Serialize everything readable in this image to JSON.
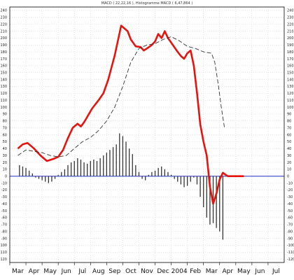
{
  "chart_data": {
    "type": "line",
    "title": "MACD ( 22,22,16 ), Histogramme MACD ( 6,47,864 )",
    "xlabel": "",
    "ylabel": "",
    "ylim": [
      -125,
      245
    ],
    "y_ticks": [
      -120,
      -110,
      -100,
      -90,
      -80,
      -70,
      -60,
      -50,
      -40,
      -30,
      -20,
      -10,
      0,
      10,
      20,
      30,
      40,
      50,
      60,
      70,
      80,
      90,
      100,
      110,
      120,
      130,
      140,
      150,
      160,
      170,
      180,
      190,
      200,
      210,
      220,
      230,
      240
    ],
    "x_labels": [
      "Mar",
      "Apr",
      "May",
      "Jun",
      "Jul",
      "Aug",
      "Sep",
      "Oct",
      "Nov",
      "Dec",
      "2004",
      "Feb",
      "Mar",
      "Apr",
      "May",
      "Jun",
      "Jul"
    ],
    "grid": true,
    "legend": "none",
    "series": [
      {
        "role": "macd",
        "color": "#e8120c",
        "x": [
          0,
          0.3,
          0.6,
          1,
          1.4,
          1.8,
          2.2,
          2.5,
          2.8,
          3.1,
          3.4,
          3.7,
          3.9,
          4.1,
          4.3,
          4.6,
          5,
          5.3,
          5.6,
          6,
          6.4,
          6.8,
          7,
          7.3,
          7.6,
          7.8,
          8,
          8.3,
          8.5,
          8.7,
          8.9,
          9.1,
          9.3,
          9.6,
          9.9,
          10.1,
          10.3,
          10.5,
          10.7,
          10.9,
          11.1,
          11.3,
          11.5,
          11.7,
          11.9,
          12.1,
          12.3,
          12.5,
          12.7,
          13,
          13.2,
          13.4,
          13.6,
          13.8,
          14
        ],
        "y": [
          40,
          46,
          48,
          40,
          30,
          22,
          25,
          28,
          38,
          55,
          70,
          76,
          72,
          78,
          86,
          98,
          110,
          120,
          140,
          175,
          218,
          210,
          198,
          188,
          187,
          182,
          185,
          190,
          195,
          206,
          200,
          210,
          200,
          190,
          180,
          174,
          170,
          178,
          182,
          160,
          120,
          75,
          50,
          30,
          -15,
          -40,
          -25,
          -5,
          5,
          0,
          0,
          0,
          0,
          0,
          0
        ]
      },
      {
        "role": "signal",
        "color": "#333333",
        "x": [
          0,
          0.5,
          1,
          1.5,
          2,
          2.5,
          3,
          3.5,
          4,
          4.5,
          5,
          5.5,
          6,
          6.5,
          7,
          7.5,
          8,
          8.5,
          9,
          9.5,
          10,
          10.5,
          11,
          11.5,
          12,
          12.2,
          12.4,
          12.6,
          12.8
        ],
        "y": [
          30,
          38,
          36,
          34,
          30,
          28,
          30,
          40,
          50,
          56,
          66,
          80,
          100,
          130,
          165,
          185,
          190,
          192,
          198,
          202,
          196,
          188,
          185,
          180,
          178,
          165,
          135,
          100,
          70
        ]
      }
    ],
    "histogram": {
      "color": "#333333",
      "x": [
        0.1,
        0.3,
        0.5,
        0.7,
        0.9,
        1.1,
        1.3,
        1.5,
        1.7,
        1.9,
        2.1,
        2.3,
        2.5,
        2.7,
        2.9,
        3.1,
        3.3,
        3.5,
        3.7,
        3.9,
        4.1,
        4.3,
        4.5,
        4.7,
        4.9,
        5.1,
        5.3,
        5.5,
        5.7,
        5.9,
        6.1,
        6.3,
        6.5,
        6.7,
        6.9,
        7.1,
        7.3,
        7.5,
        7.7,
        7.9,
        8.1,
        8.3,
        8.5,
        8.7,
        8.9,
        9.1,
        9.3,
        9.5,
        9.7,
        9.9,
        10.1,
        10.3,
        10.5,
        10.7,
        10.9,
        11.1,
        11.3,
        11.5,
        11.7,
        11.9,
        12.1,
        12.3,
        12.5,
        12.7
      ],
      "y": [
        16,
        14,
        12,
        8,
        4,
        -2,
        -4,
        -6,
        -8,
        -10,
        -8,
        -4,
        2,
        6,
        10,
        16,
        20,
        22,
        26,
        24,
        20,
        18,
        22,
        24,
        22,
        26,
        30,
        34,
        38,
        42,
        46,
        62,
        58,
        50,
        40,
        32,
        16,
        6,
        -4,
        -6,
        2,
        6,
        8,
        12,
        14,
        10,
        6,
        2,
        -4,
        -8,
        -12,
        -16,
        -14,
        -8,
        -2,
        -12,
        -30,
        -45,
        -60,
        -70,
        -68,
        -75,
        -80,
        -92
      ]
    }
  }
}
